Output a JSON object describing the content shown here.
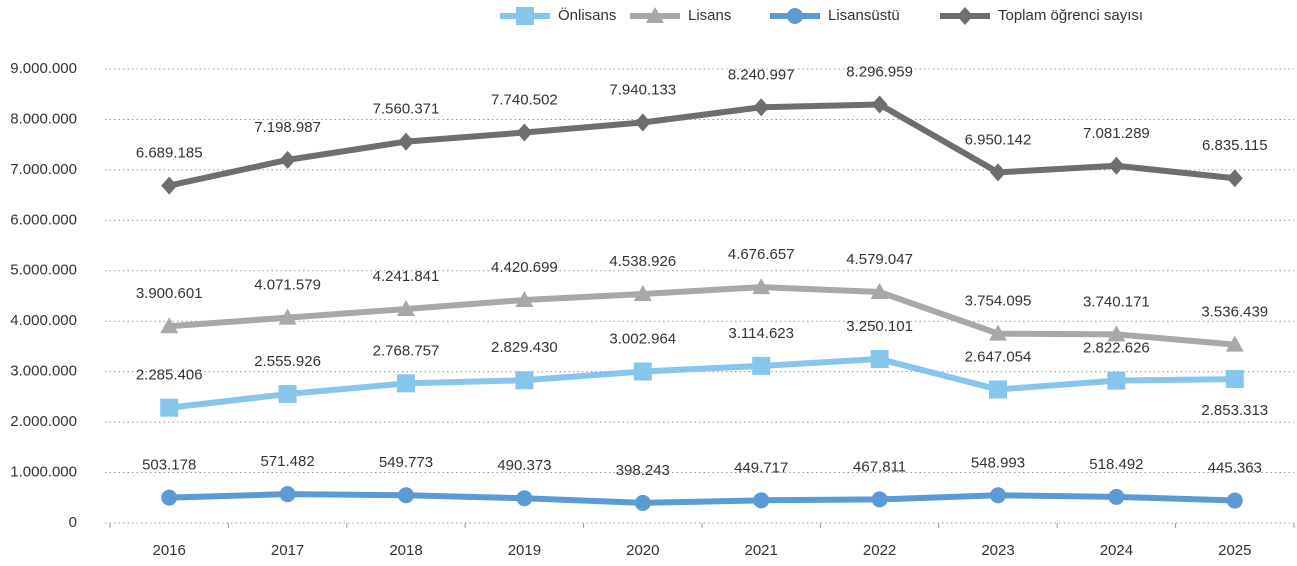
{
  "chart_data": {
    "type": "line",
    "categories": [
      "2016",
      "2017",
      "2018",
      "2019",
      "2020",
      "2021",
      "2022",
      "2023",
      "2024",
      "2025"
    ],
    "series": [
      {
        "name": "Önlisans",
        "color": "#86c6ec",
        "marker": "square",
        "values": [
          2285406,
          2555926,
          2768757,
          2829430,
          3002964,
          3114623,
          3250101,
          2647054,
          2822626,
          2853313
        ],
        "value_labels": [
          "2.285.406",
          "2.555.926",
          "2.768.757",
          "2.829.430",
          "3.002.964",
          "3.114.623",
          "3.250.101",
          "2.647.054",
          "2.822.626",
          "2.853.313"
        ]
      },
      {
        "name": "Lisans",
        "color": "#a8a8a8",
        "marker": "triangle",
        "values": [
          3900601,
          4071579,
          4241841,
          4420699,
          4538926,
          4676657,
          4579047,
          3754095,
          3740171,
          3536439
        ],
        "value_labels": [
          "3.900.601",
          "4.071.579",
          "4.241.841",
          "4.420.699",
          "4.538.926",
          "4.676.657",
          "4.579.047",
          "3.754.095",
          "3.740.171",
          "3.536.439"
        ]
      },
      {
        "name": "Lisansüstü",
        "color": "#5b9bd5",
        "marker": "circle",
        "values": [
          503178,
          571482,
          549773,
          490373,
          398243,
          449717,
          467811,
          548993,
          518492,
          445363
        ],
        "value_labels": [
          "503.178",
          "571.482",
          "549.773",
          "490.373",
          "398.243",
          "449.717",
          "467.811",
          "548.993",
          "518.492",
          "445.363"
        ]
      },
      {
        "name": "Toplam öğrenci sayısı",
        "color": "#6e6e6e",
        "marker": "diamond",
        "values": [
          6689185,
          7198987,
          7560371,
          7740502,
          7940133,
          8240997,
          8296959,
          6950142,
          7081289,
          6835115
        ],
        "value_labels": [
          "6.689.185",
          "7.198.987",
          "7.560.371",
          "7.740.502",
          "7.940.133",
          "8.240.997",
          "8.296.959",
          "6.950.142",
          "7.081.289",
          "6.835.115"
        ]
      }
    ],
    "ylim": [
      0,
      9000000
    ],
    "yticks": [
      0,
      {
        "value": 1000000,
        "label": "1.000.000"
      },
      {
        "value": 2000000,
        "label": "2.000.000"
      },
      {
        "value": 3000000,
        "label": "3.000.000"
      },
      {
        "value": 4000000,
        "label": "4.000.000"
      },
      {
        "value": 5000000,
        "label": "5.000.000"
      },
      {
        "value": 6000000,
        "label": "6.000.000"
      },
      {
        "value": 7000000,
        "label": "7.000.000"
      },
      {
        "value": 8000000,
        "label": "8.000.000"
      },
      {
        "value": 9000000,
        "label": "9.000.000"
      }
    ],
    "grid": true,
    "legend": "top"
  }
}
